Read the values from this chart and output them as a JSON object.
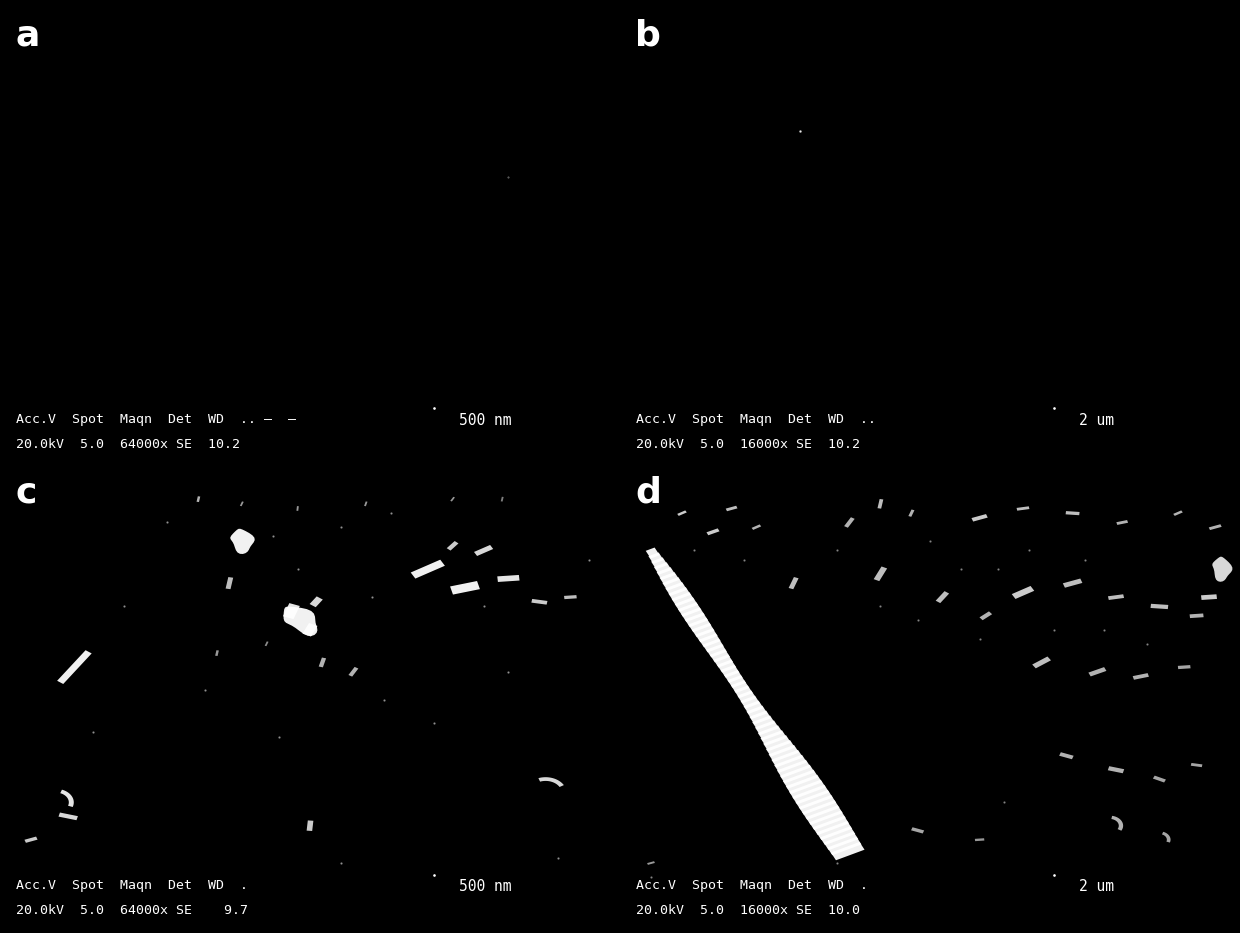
{
  "bg_color": "#000000",
  "text_color": "#ffffff",
  "panel_labels": [
    "a",
    "b",
    "c",
    "d"
  ],
  "panel_label_fontsize": 26,
  "meta_a_l1": "Acc.V  Spot  Maqn  Det  WD  .. –  —",
  "meta_a_l2": "20.0kV  5.0  64000x SE  10.2",
  "meta_a_scale": "500 nm",
  "meta_b_l1": "Acc.V  Spot  Maqn  Det  WD  ..",
  "meta_b_l2": "20.0kV  5.0  16000x SE  10.2",
  "meta_b_scale": "2 um",
  "meta_c_l1": "Acc.V  Spot  Maqn  Det  WD  .",
  "meta_c_l2": "20.0kV  5.0  64000x SE    9.7",
  "meta_c_scale": "500 nm",
  "meta_d_l1": "Acc.V  Spot  Maqn  Det  WD  .",
  "meta_d_l2": "20.0kV  5.0  16000x SE  10.0",
  "meta_d_scale": "2 um",
  "meta_fontsize": 9.5,
  "scale_fontsize": 10.5
}
